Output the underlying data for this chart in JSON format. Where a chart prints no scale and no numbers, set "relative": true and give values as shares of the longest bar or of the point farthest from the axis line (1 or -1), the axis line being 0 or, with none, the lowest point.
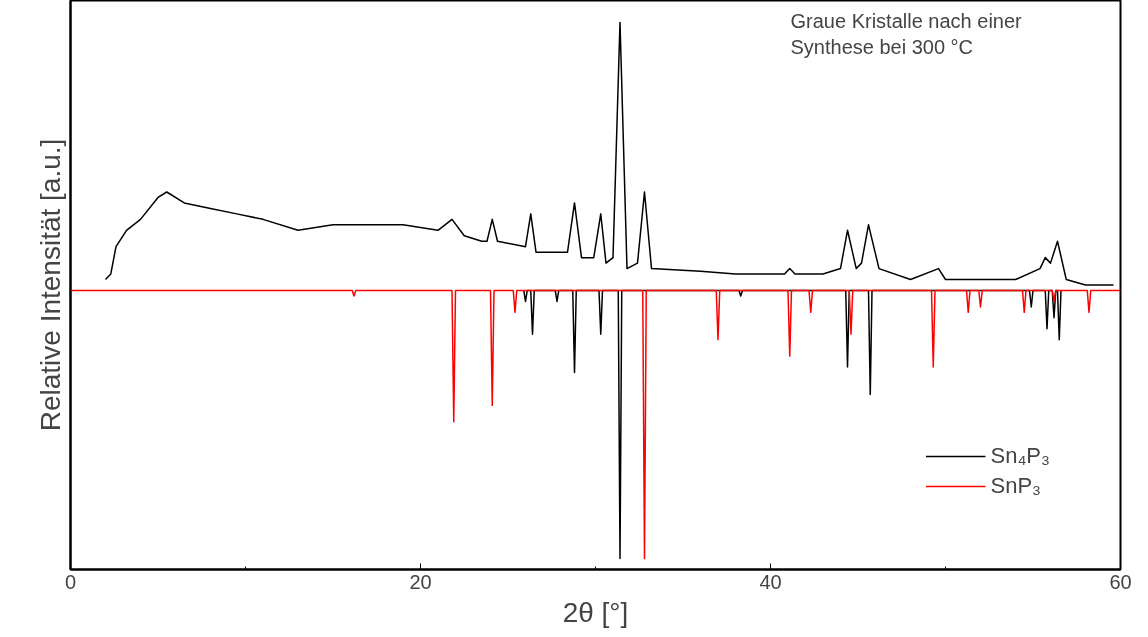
{
  "chart_data": {
    "type": "line",
    "relative": true,
    "xlabel": "2θ [°]",
    "ylabel": "Relative Intensität [a.u.]",
    "annotations": [
      "Graue Kristalle nach einer\nSynthese bei 300 °C"
    ],
    "xlim": [
      0,
      60
    ],
    "xticks": [
      0,
      20,
      40,
      60
    ],
    "grid": false,
    "legend": "bottom right",
    "line_style": "solid",
    "series": [
      {
        "color": "#000000",
        "x": [
          2.0,
          2.3,
          2.6,
          3.2,
          4.0,
          5.0,
          5.5,
          6.5,
          8.0,
          9.5,
          11,
          13,
          15,
          17,
          19,
          21,
          21.8,
          22.5,
          23.5,
          23.8,
          24.1,
          24.4,
          26.0,
          26.3,
          26.6,
          28.4,
          28.8,
          29.2,
          29.9,
          30.3,
          30.6,
          31.0,
          31.4,
          31.8,
          32.4,
          32.8,
          33.2,
          36,
          38,
          40.8,
          41.1,
          41.4,
          43,
          44.0,
          44.4,
          44.9,
          45.2,
          45.6,
          46.2,
          48,
          49.6,
          50,
          52,
          54,
          55.4,
          55.7,
          56.0,
          56.4,
          56.9,
          58,
          59.6
        ],
        "values": [
          0.53,
          0.54,
          0.59,
          0.62,
          0.64,
          0.68,
          0.69,
          0.67,
          0.66,
          0.65,
          0.64,
          0.62,
          0.63,
          0.63,
          0.63,
          0.62,
          0.64,
          0.61,
          0.6,
          0.6,
          0.64,
          0.6,
          0.59,
          0.65,
          0.58,
          0.58,
          0.67,
          0.57,
          0.57,
          0.65,
          0.56,
          0.57,
          1.0,
          0.55,
          0.56,
          0.69,
          0.55,
          0.545,
          0.54,
          0.54,
          0.55,
          0.54,
          0.54,
          0.55,
          0.62,
          0.55,
          0.56,
          0.63,
          0.55,
          0.53,
          0.55,
          0.53,
          0.53,
          0.53,
          0.55,
          0.57,
          0.56,
          0.6,
          0.53,
          0.52,
          0.52
        ]
      },
      {
        "name": "Sn₄P₃",
        "color": "#000000",
        "x": [
          25.9,
          26.0,
          26.1,
          26.3,
          26.4,
          26.5,
          27.7,
          27.8,
          27.9,
          28.7,
          28.8,
          28.9,
          30.2,
          30.3,
          30.4,
          31.3,
          31.4,
          31.5,
          38.2,
          38.3,
          38.4,
          44.3,
          44.4,
          44.5,
          45.6,
          45.7,
          45.8,
          54.8,
          54.9,
          55.0,
          55.7,
          55.8,
          55.9,
          56.1,
          56.2,
          56.3,
          56.4,
          56.5,
          56.6
        ],
        "values": [
          0.51,
          0.49,
          0.51,
          0.51,
          0.43,
          0.51,
          0.51,
          0.49,
          0.51,
          0.51,
          0.36,
          0.51,
          0.51,
          0.43,
          0.51,
          0.51,
          0.02,
          0.51,
          0.51,
          0.5,
          0.51,
          0.51,
          0.37,
          0.51,
          0.51,
          0.32,
          0.51,
          0.51,
          0.48,
          0.51,
          0.51,
          0.44,
          0.51,
          0.51,
          0.46,
          0.51,
          0.51,
          0.42,
          0.51
        ]
      },
      {
        "name": "SnP₃",
        "color": "#ff0000",
        "x": [
          0,
          16.1,
          16.2,
          16.3,
          21.8,
          21.9,
          22.0,
          24.0,
          24.1,
          24.2,
          25.3,
          25.4,
          25.5,
          32.7,
          32.8,
          32.9,
          36.9,
          37.0,
          37.1,
          41.0,
          41.1,
          41.2,
          42.2,
          42.3,
          42.4,
          44.5,
          44.6,
          44.7,
          49.2,
          49.3,
          49.4,
          51.2,
          51.3,
          51.4,
          51.9,
          52.0,
          52.1,
          54.4,
          54.5,
          54.6,
          56.1,
          56.2,
          56.3,
          58.1,
          58.2,
          58.3,
          60
        ],
        "values": [
          0.51,
          0.51,
          0.5,
          0.51,
          0.51,
          0.27,
          0.51,
          0.51,
          0.3,
          0.51,
          0.51,
          0.47,
          0.51,
          0.51,
          0.02,
          0.51,
          0.51,
          0.42,
          0.51,
          0.51,
          0.39,
          0.51,
          0.51,
          0.47,
          0.51,
          0.51,
          0.43,
          0.51,
          0.51,
          0.37,
          0.51,
          0.51,
          0.47,
          0.51,
          0.51,
          0.48,
          0.51,
          0.51,
          0.47,
          0.51,
          0.51,
          0.49,
          0.51,
          0.51,
          0.47,
          0.51,
          0.51
        ]
      }
    ]
  }
}
